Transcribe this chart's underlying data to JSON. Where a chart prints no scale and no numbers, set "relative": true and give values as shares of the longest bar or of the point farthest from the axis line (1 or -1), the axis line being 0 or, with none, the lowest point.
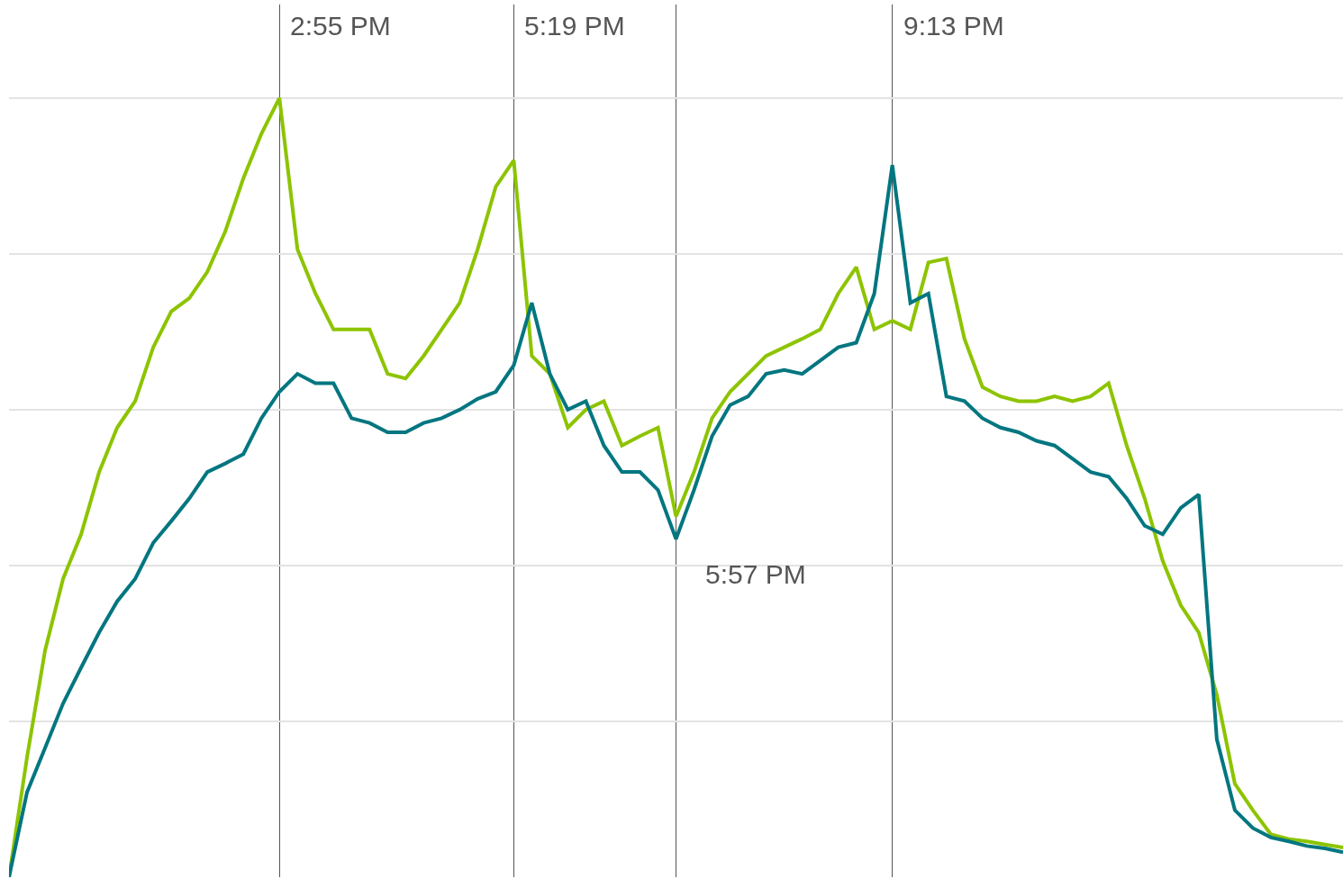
{
  "chart_data": {
    "type": "line",
    "relative": true,
    "grid": true,
    "marker": "none",
    "line_style": "solid",
    "categories": [
      null,
      null,
      null,
      null,
      null,
      null,
      null,
      null,
      null,
      null,
      null,
      null,
      null,
      null,
      null,
      null,
      null,
      null,
      null,
      null,
      null,
      null,
      null,
      null,
      null,
      null,
      null,
      null,
      null,
      null,
      null,
      null,
      null,
      null,
      null,
      null,
      null,
      null,
      null,
      null,
      null,
      null,
      null,
      null,
      null,
      null,
      null,
      null,
      null,
      null,
      null,
      null,
      null,
      null,
      null,
      null,
      null,
      null,
      null,
      null,
      null,
      null,
      null,
      null,
      null,
      null,
      null,
      null,
      null,
      null,
      null,
      null,
      null,
      null,
      null
    ],
    "series": [
      {
        "color": "#8dc400",
        "values": [
          0,
          0.154,
          0.291,
          0.383,
          0.44,
          0.52,
          0.577,
          0.611,
          0.68,
          0.726,
          0.743,
          0.777,
          0.829,
          0.897,
          0.954,
          1,
          0.806,
          0.749,
          0.703,
          0.703,
          0.703,
          0.646,
          0.64,
          0.669,
          0.703,
          0.737,
          0.806,
          0.886,
          0.92,
          0.669,
          0.646,
          0.577,
          0.6,
          0.611,
          0.554,
          0.566,
          0.577,
          0.463,
          0.52,
          0.589,
          0.623,
          0.646,
          0.669,
          0.68,
          0.691,
          0.703,
          0.749,
          0.783,
          0.703,
          0.714,
          0.703,
          0.789,
          0.794,
          0.691,
          0.629,
          0.617,
          0.611,
          0.611,
          0.617,
          0.611,
          0.617,
          0.634,
          0.554,
          0.486,
          0.406,
          0.349,
          0.314,
          0.234,
          0.12,
          0.086,
          0.055,
          0.049,
          0.046,
          0.042,
          0.038
        ]
      },
      {
        "color": "#037680",
        "values": [
          0,
          0.109,
          0.166,
          0.223,
          0.269,
          0.314,
          0.354,
          0.383,
          0.429,
          0.457,
          0.486,
          0.52,
          0.531,
          0.543,
          0.589,
          0.623,
          0.646,
          0.634,
          0.634,
          0.589,
          0.583,
          0.571,
          0.571,
          0.583,
          0.589,
          0.6,
          0.614,
          0.623,
          0.657,
          0.737,
          0.646,
          0.6,
          0.611,
          0.554,
          0.52,
          0.52,
          0.497,
          0.434,
          0.497,
          0.566,
          0.606,
          0.617,
          0.646,
          0.651,
          0.646,
          0.663,
          0.68,
          0.686,
          0.749,
          0.914,
          0.737,
          0.749,
          0.617,
          0.611,
          0.589,
          0.577,
          0.571,
          0.56,
          0.554,
          0.537,
          0.52,
          0.514,
          0.486,
          0.451,
          0.44,
          0.474,
          0.491,
          0.177,
          0.086,
          0.063,
          0.051,
          0.046,
          0.04,
          0.037,
          0.032
        ]
      }
    ],
    "annotations": [
      "2:55 PM",
      "5:19 PM",
      "5:57 PM",
      "9:13 PM"
    ]
  }
}
